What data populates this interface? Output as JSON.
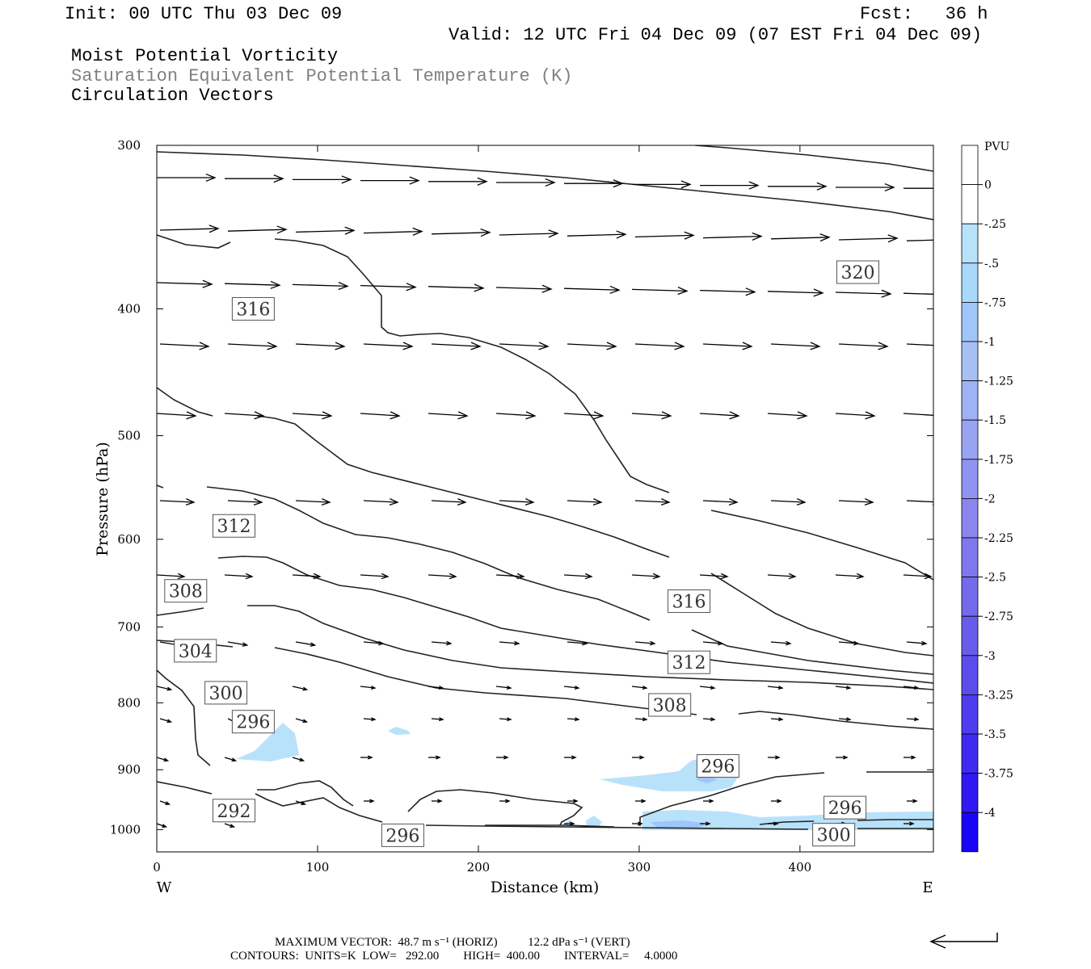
{
  "header": {
    "init": "Init: 00 UTC Thu 03 Dec 09",
    "fcst": "Fcst:   36 h",
    "valid": "Valid: 12 UTC Fri 04 Dec 09 (07 EST Fri 04 Dec 09)",
    "field1": "Moist Potential Vorticity",
    "field2": "Saturation Equivalent Potential Temperature (K)",
    "field3": "Circulation Vectors"
  },
  "colorbar": {
    "unit": "PVU",
    "labels": [
      "0",
      "-.25",
      "-.5",
      "-.75",
      "-1",
      "-1.25",
      "-1.5",
      "-1.75",
      "-2",
      "-2.25",
      "-2.5",
      "-2.75",
      "-3",
      "-3.25",
      "-3.5",
      "-3.75",
      "-4"
    ],
    "colors": [
      "#ffffff",
      "#b8e2fa",
      "#a8d8fa",
      "#9fc6fa",
      "#a6c0f6",
      "#9fb2f4",
      "#98a4f2",
      "#9094f0",
      "#8a86ee",
      "#7f78ec",
      "#746aea",
      "#6a5cea",
      "#5c4cec",
      "#4e3cee",
      "#402af0",
      "#3018f2",
      "#1a04f6"
    ]
  },
  "chart_data": {
    "type": "contour",
    "xlabel": "Distance (km)",
    "ylabel": "Pressure (hPa)",
    "x_ticks": [
      0,
      100,
      200,
      300,
      400
    ],
    "y_ticks": [
      300,
      400,
      500,
      600,
      700,
      800,
      900,
      1000
    ],
    "xlim": [
      0,
      483
    ],
    "ylim": [
      300,
      1040
    ],
    "y_scale": "log",
    "left_end_label": "W",
    "right_end_label": "E",
    "contour_labels": [
      {
        "text": "320",
        "x": 436,
        "y": 375
      },
      {
        "text": "316",
        "x": 60,
        "y": 400
      },
      {
        "text": "316",
        "x": 331,
        "y": 669
      },
      {
        "text": "312",
        "x": 48,
        "y": 586
      },
      {
        "text": "312",
        "x": 331,
        "y": 745
      },
      {
        "text": "308",
        "x": 18,
        "y": 657
      },
      {
        "text": "308",
        "x": 319,
        "y": 803
      },
      {
        "text": "304",
        "x": 24,
        "y": 730
      },
      {
        "text": "300",
        "x": 43,
        "y": 786
      },
      {
        "text": "300",
        "x": 421,
        "y": 1009
      },
      {
        "text": "296",
        "x": 60,
        "y": 827
      },
      {
        "text": "296",
        "x": 349,
        "y": 894
      },
      {
        "text": "296",
        "x": 428,
        "y": 962
      },
      {
        "text": "296",
        "x": 153,
        "y": 1010
      },
      {
        "text": "292",
        "x": 48,
        "y": 967
      }
    ]
  },
  "footer": {
    "max_vector": "MAXIMUM VECTOR:  48.7 m s⁻¹ (HORIZ)          12.2 dPa s⁻¹ (VERT)",
    "contours": "CONTOURS:  UNITS=K  LOW=   292.00        HIGH=  400.00        INTERVAL=     4.0000"
  }
}
